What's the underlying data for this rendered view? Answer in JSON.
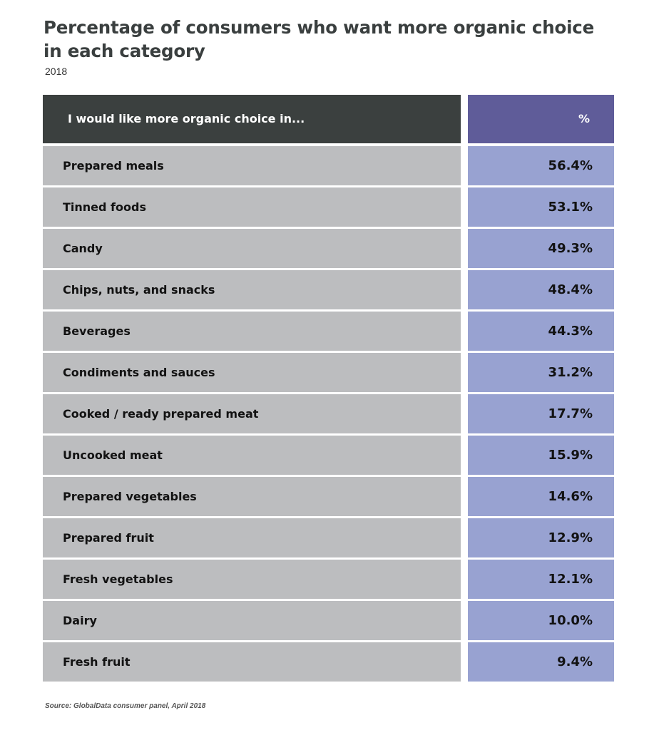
{
  "chart_data": {
    "type": "table",
    "title": "Percentage of consumers who want more organic choice in each category",
    "subtitle": "2018",
    "header": {
      "label": "I would like more organic choice in...",
      "value": "%"
    },
    "rows": [
      {
        "label": "Prepared meals",
        "value": 56.4,
        "display": "56.4%"
      },
      {
        "label": "Tinned foods",
        "value": 53.1,
        "display": "53.1%"
      },
      {
        "label": "Candy",
        "value": 49.3,
        "display": "49.3%"
      },
      {
        "label": "Chips, nuts, and snacks",
        "value": 48.4,
        "display": "48.4%"
      },
      {
        "label": "Beverages",
        "value": 44.3,
        "display": "44.3%"
      },
      {
        "label": "Condiments and sauces",
        "value": 31.2,
        "display": "31.2%"
      },
      {
        "label": "Cooked / ready prepared meat",
        "value": 17.7,
        "display": "17.7%"
      },
      {
        "label": "Uncooked meat",
        "value": 15.9,
        "display": "15.9%"
      },
      {
        "label": "Prepared vegetables",
        "value": 14.6,
        "display": "14.6%"
      },
      {
        "label": "Prepared fruit",
        "value": 12.9,
        "display": "12.9%"
      },
      {
        "label": "Fresh vegetables",
        "value": 12.1,
        "display": "12.1%"
      },
      {
        "label": "Dairy",
        "value": 10.0,
        "display": "10.0%"
      },
      {
        "label": "Fresh fruit",
        "value": 9.4,
        "display": "9.4%"
      }
    ],
    "source": "Source: GlobalData consumer panel, April 2018",
    "colors": {
      "header_label_bg": "#3b403f",
      "header_value_bg": "#5f5c99",
      "label_bg": "#bcbdbf",
      "value_bg": "#98a2d1"
    }
  }
}
